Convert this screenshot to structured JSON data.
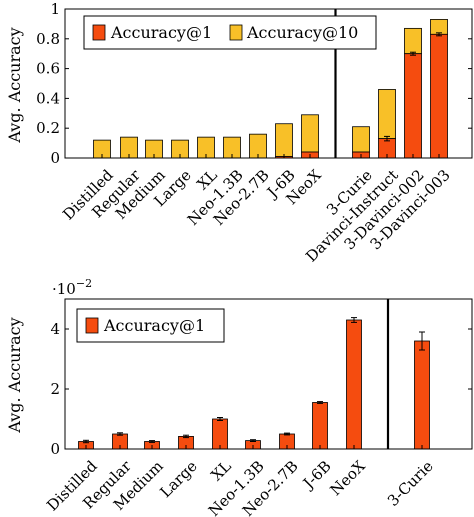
{
  "colors": {
    "accuracy1": "#f54c0f",
    "accuracy10": "#f8c028",
    "stroke": "#000000"
  },
  "chart_data": [
    {
      "type": "bar",
      "stacked": true,
      "ylabel": "Avg. Accuracy",
      "ylim": [
        0,
        1
      ],
      "yticks": [
        0,
        0.2,
        0.4,
        0.6,
        0.8,
        1
      ],
      "ytick_labels": [
        "0",
        "0.2",
        "0.4",
        "0.6",
        "0.8",
        "1"
      ],
      "grid": false,
      "legend_position": "top-left",
      "separator_after_index": 8,
      "categories": [
        "Distilled",
        "Regular",
        "Medium",
        "Large",
        "XL",
        "Neo-1.3B",
        "Neo-2.7B",
        "J-6B",
        "NeoX",
        "3-Curie",
        "Davinci-Instruct",
        "3-Davinci-002",
        "3-Davinci-003"
      ],
      "series": [
        {
          "name": "Accuracy@1",
          "color_key": "accuracy1",
          "values": [
            0.0,
            0.0,
            0.0,
            0.0,
            0.0,
            0.0,
            0.0,
            0.01,
            0.04,
            0.04,
            0.13,
            0.7,
            0.83
          ]
        },
        {
          "name": "Accuracy@10",
          "color_key": "accuracy10",
          "total_values": [
            0.12,
            0.14,
            0.12,
            0.12,
            0.14,
            0.14,
            0.16,
            0.23,
            0.29,
            0.21,
            0.46,
            0.87,
            0.93
          ]
        }
      ],
      "error_bars_accuracy1": [
        null,
        null,
        null,
        null,
        null,
        null,
        null,
        null,
        null,
        null,
        0.015,
        0.01,
        0.01
      ]
    },
    {
      "type": "bar",
      "ylabel": "Avg. Accuracy",
      "scale_label": "·10",
      "scale_exponent": "−2",
      "ylim": [
        0,
        5
      ],
      "yticks": [
        0,
        2,
        4
      ],
      "ytick_labels": [
        "0",
        "2",
        "4"
      ],
      "grid": false,
      "legend_position": "top-left",
      "separator_after_index": 8,
      "categories": [
        "Distilled",
        "Regular",
        "Medium",
        "Large",
        "XL",
        "Neo-1.3B",
        "Neo-2.7B",
        "J-6B",
        "NeoX",
        "3-Curie"
      ],
      "series": [
        {
          "name": "Accuracy@1",
          "color_key": "accuracy1",
          "values": [
            0.25,
            0.5,
            0.25,
            0.42,
            1.0,
            0.28,
            0.5,
            1.55,
            4.3,
            3.6
          ]
        }
      ],
      "error_bars": [
        0.04,
        0.04,
        0.03,
        0.04,
        0.05,
        0.03,
        0.03,
        0.03,
        0.08,
        0.3
      ]
    }
  ]
}
